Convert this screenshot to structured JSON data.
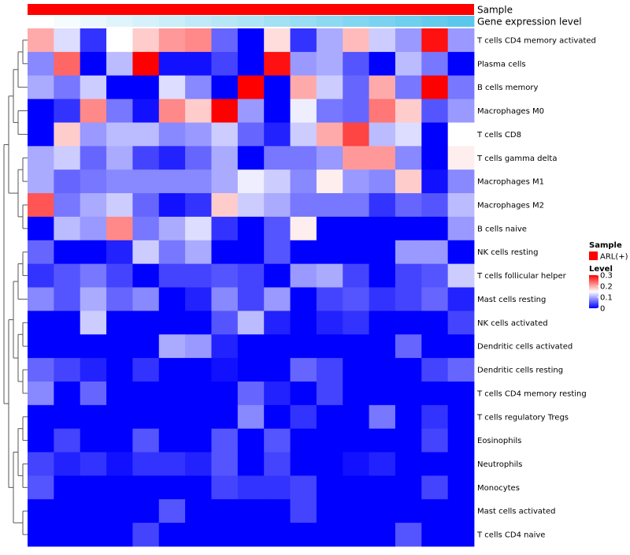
{
  "chart_data": {
    "type": "heatmap",
    "title": "",
    "annotation_tracks": [
      {
        "name": "Sample",
        "value": "ARL(+)",
        "color": "#ff0000"
      },
      {
        "name": "Gene expression level",
        "gradient": [
          "#ffffff",
          "#5ac8ec"
        ]
      }
    ],
    "rows": [
      "T cells CD4 memory activated",
      "Plasma cells",
      "B cells memory",
      "Macrophages M0",
      "T cells CD8",
      "T cells gamma delta",
      "Macrophages M1",
      "Macrophages M2",
      "B cells naive",
      "NK cells resting",
      "T cells follicular helper",
      "Mast cells resting",
      "NK cells activated",
      "Dendritic cells activated",
      "Dendritic cells resting",
      "T cells CD4 memory resting",
      "T cells regulatory  Tregs",
      "Eosinophils",
      "Neutrophils",
      "Monocytes",
      "Mast cells activated",
      "T cells CD4 naive"
    ],
    "n_columns": 17,
    "values": [
      [
        0.2,
        0.13,
        0.03,
        0.15,
        0.18,
        0.21,
        0.22,
        0.06,
        0.0,
        0.17,
        0.03,
        0.1,
        0.19,
        0.12,
        0.09,
        0.29,
        0.09
      ],
      [
        0.08,
        0.24,
        0.0,
        0.11,
        0.3,
        0.01,
        0.01,
        0.04,
        0.0,
        0.29,
        0.09,
        0.1,
        0.05,
        0.0,
        0.11,
        0.07,
        0.0
      ],
      [
        0.1,
        0.07,
        0.12,
        0.0,
        0.0,
        0.13,
        0.08,
        0.0,
        0.3,
        0.0,
        0.2,
        0.12,
        0.06,
        0.2,
        0.07,
        0.3,
        0.07
      ],
      [
        0.0,
        0.03,
        0.22,
        0.07,
        0.01,
        0.22,
        0.18,
        0.3,
        0.09,
        0.0,
        0.14,
        0.07,
        0.06,
        0.23,
        0.18,
        0.05,
        0.09
      ],
      [
        0.0,
        0.18,
        0.09,
        0.11,
        0.11,
        0.08,
        0.09,
        0.12,
        0.06,
        0.02,
        0.12,
        0.2,
        0.26,
        0.11,
        0.13,
        0.0,
        0.15
      ],
      [
        0.1,
        0.12,
        0.06,
        0.1,
        0.04,
        0.02,
        0.06,
        0.1,
        0.0,
        0.07,
        0.07,
        0.09,
        0.21,
        0.21,
        0.08,
        0.0,
        0.16
      ],
      [
        0.1,
        0.06,
        0.07,
        0.08,
        0.08,
        0.08,
        0.08,
        0.1,
        0.14,
        0.12,
        0.08,
        0.16,
        0.09,
        0.08,
        0.18,
        0.01,
        0.08
      ],
      [
        0.25,
        0.07,
        0.1,
        0.12,
        0.06,
        0.01,
        0.03,
        0.18,
        0.12,
        0.1,
        0.07,
        0.07,
        0.07,
        0.03,
        0.06,
        0.05,
        0.11
      ],
      [
        0.0,
        0.11,
        0.09,
        0.22,
        0.07,
        0.1,
        0.13,
        0.03,
        0.0,
        0.05,
        0.16,
        0.0,
        0.0,
        0.0,
        0.0,
        0.0,
        0.09
      ],
      [
        0.06,
        0.0,
        0.0,
        0.02,
        0.12,
        0.07,
        0.1,
        0.0,
        0.0,
        0.05,
        0.0,
        0.0,
        0.0,
        0.0,
        0.09,
        0.09,
        0.0
      ],
      [
        0.03,
        0.05,
        0.07,
        0.04,
        0.0,
        0.04,
        0.04,
        0.05,
        0.04,
        0.0,
        0.09,
        0.1,
        0.04,
        0.0,
        0.04,
        0.05,
        0.12
      ],
      [
        0.08,
        0.05,
        0.1,
        0.06,
        0.08,
        0.0,
        0.02,
        0.08,
        0.04,
        0.09,
        0.0,
        0.04,
        0.05,
        0.03,
        0.04,
        0.06,
        0.02
      ],
      [
        0.0,
        0.0,
        0.12,
        0.0,
        0.0,
        0.0,
        0.0,
        0.05,
        0.11,
        0.02,
        0.0,
        0.02,
        0.03,
        0.0,
        0.0,
        0.0,
        0.04
      ],
      [
        0.0,
        0.0,
        0.0,
        0.0,
        0.0,
        0.1,
        0.09,
        0.02,
        0.0,
        0.0,
        0.0,
        0.0,
        0.0,
        0.0,
        0.06,
        0.0,
        0.0
      ],
      [
        0.06,
        0.04,
        0.02,
        0.0,
        0.03,
        0.0,
        0.0,
        0.01,
        0.0,
        0.0,
        0.06,
        0.04,
        0.0,
        0.0,
        0.0,
        0.04,
        0.06
      ],
      [
        0.08,
        0.0,
        0.06,
        0.0,
        0.0,
        0.0,
        0.0,
        0.0,
        0.06,
        0.02,
        0.0,
        0.04,
        0.0,
        0.0,
        0.0,
        0.0,
        0.0
      ],
      [
        0.0,
        0.0,
        0.0,
        0.0,
        0.0,
        0.0,
        0.0,
        0.0,
        0.08,
        0.0,
        0.03,
        0.0,
        0.0,
        0.07,
        0.0,
        0.03,
        0.0
      ],
      [
        0.0,
        0.04,
        0.0,
        0.0,
        0.05,
        0.0,
        0.0,
        0.05,
        0.0,
        0.05,
        0.0,
        0.0,
        0.0,
        0.0,
        0.0,
        0.04,
        0.0
      ],
      [
        0.04,
        0.02,
        0.03,
        0.01,
        0.03,
        0.03,
        0.02,
        0.05,
        0.0,
        0.04,
        0.0,
        0.0,
        0.01,
        0.02,
        0.0,
        0.0,
        0.0
      ],
      [
        0.05,
        0.0,
        0.0,
        0.0,
        0.0,
        0.0,
        0.0,
        0.04,
        0.03,
        0.03,
        0.04,
        0.0,
        0.0,
        0.0,
        0.0,
        0.04,
        0.0
      ],
      [
        0.0,
        0.0,
        0.0,
        0.0,
        0.0,
        0.05,
        0.0,
        0.0,
        0.0,
        0.0,
        0.04,
        0.0,
        0.0,
        0.0,
        0.0,
        0.0,
        0.0
      ],
      [
        0.0,
        0.0,
        0.0,
        0.0,
        0.04,
        0.0,
        0.0,
        0.0,
        0.0,
        0.0,
        0.0,
        0.0,
        0.0,
        0.0,
        0.05,
        0.0,
        0.0
      ]
    ],
    "color_scale": {
      "range": [
        0,
        0.3
      ],
      "stops": [
        {
          "value": 0,
          "color": "#0000ff"
        },
        {
          "value": 0.15,
          "color": "#ffffff"
        },
        {
          "value": 0.3,
          "color": "#ff0000"
        }
      ]
    },
    "legend": {
      "position": "right",
      "sample_title": "Sample",
      "sample_entry": "ARL(+)",
      "sample_color": "#ff0000",
      "level_title": "Level",
      "ticks": [
        "0.3",
        "0.2",
        "0.1",
        "0"
      ]
    },
    "dendrogram": {
      "side": "left"
    }
  }
}
